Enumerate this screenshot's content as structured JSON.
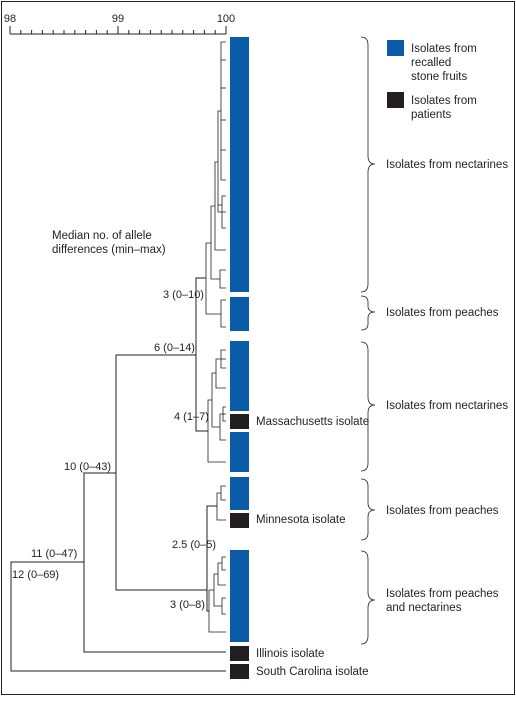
{
  "axis": {
    "ticks": [
      "98",
      "99",
      "100"
    ]
  },
  "legend": {
    "items": [
      {
        "label_lines": [
          "Isolates from",
          "recalled",
          "stone fruits"
        ],
        "color": "#0b5ca8"
      },
      {
        "label_lines": [
          "Isolates from",
          "patients"
        ],
        "color": "#231f20"
      }
    ]
  },
  "metric_label_lines": [
    "Median no. of allele",
    "differences (min–max)"
  ],
  "node_labels": [
    "3 (0–10)",
    "6 (0–14)",
    "4 (1–7)",
    "10 (0–43)",
    "2.5 (0–5)",
    "3 (0–8)",
    "11 (0–47)",
    "12 (0–69)"
  ],
  "isolate_labels": [
    "Massachusetts isolate",
    "Minnesota isolate",
    "Illinois isolate",
    "South Carolina isolate"
  ],
  "groups": [
    {
      "label_lines": [
        "Isolates from nectarines"
      ]
    },
    {
      "label_lines": [
        "Isolates from peaches"
      ]
    },
    {
      "label_lines": [
        "Isolates from nectarines"
      ]
    },
    {
      "label_lines": [
        "Isolates from peaches"
      ]
    },
    {
      "label_lines": [
        "Isolates from peaches",
        "and nectarines"
      ]
    }
  ],
  "colors": {
    "fruit": "#0b5ca8",
    "patient": "#231f20"
  }
}
